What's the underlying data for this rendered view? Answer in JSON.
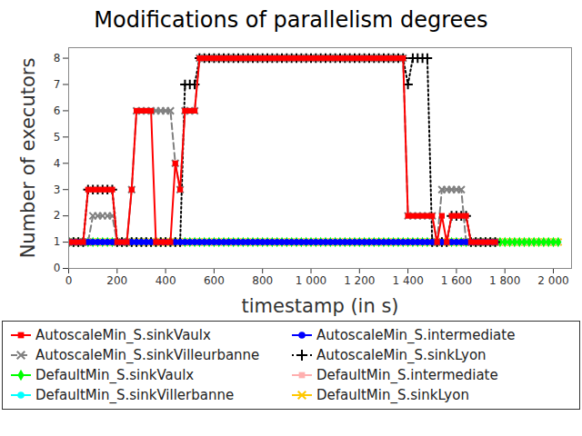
{
  "chart_data": {
    "type": "line",
    "title": "Modifications of parallelism degrees",
    "x_label": "timestamp (in s)",
    "y_label": "Number of executors",
    "xlim": [
      0,
      2075
    ],
    "ylim": [
      0,
      8.4
    ],
    "xticks": [
      0,
      200,
      400,
      600,
      800,
      {
        "value": 1000,
        "label": "1 000"
      },
      {
        "value": 1200,
        "label": "1 200"
      },
      {
        "value": 1400,
        "label": "1 400"
      },
      {
        "value": 1600,
        "label": "1 600"
      },
      {
        "value": 1800,
        "label": "1 800"
      },
      {
        "value": 2000,
        "label": "2 000"
      }
    ],
    "yticks": [
      0,
      1,
      2,
      3,
      4,
      5,
      6,
      7,
      8
    ],
    "grid": false,
    "legend": "bottom",
    "x": [
      0,
      20,
      40,
      60,
      80,
      100,
      120,
      140,
      160,
      180,
      200,
      220,
      240,
      260,
      280,
      300,
      320,
      340,
      360,
      380,
      400,
      420,
      440,
      460,
      480,
      500,
      520,
      540,
      560,
      580,
      600,
      620,
      640,
      660,
      680,
      700,
      720,
      740,
      760,
      780,
      800,
      820,
      840,
      860,
      880,
      900,
      920,
      940,
      960,
      980,
      1000,
      1020,
      1040,
      1060,
      1080,
      1100,
      1120,
      1140,
      1160,
      1180,
      1200,
      1220,
      1240,
      1260,
      1280,
      1300,
      1320,
      1340,
      1360,
      1380,
      1400,
      1420,
      1440,
      1460,
      1480,
      1500,
      1520,
      1540,
      1560,
      1580,
      1600,
      1620,
      1640,
      1660,
      1680,
      1700,
      1720,
      1740,
      1760,
      1780,
      1800,
      1820,
      1840,
      1860,
      1880,
      1900,
      1920,
      1940,
      1960,
      1980,
      2000,
      2020
    ],
    "series": [
      {
        "name": "AutoscaleMin_S.sinkVaulx",
        "color": "#ff0000",
        "marker": "square",
        "line_style": "solid",
        "values": [
          1,
          1,
          1,
          1,
          3,
          3,
          3,
          3,
          3,
          3,
          1,
          1,
          1,
          3,
          6,
          6,
          6,
          6,
          1,
          1,
          1,
          1,
          4,
          3,
          6,
          6,
          6,
          8,
          8,
          8,
          8,
          8,
          8,
          8,
          8,
          8,
          8,
          8,
          8,
          8,
          8,
          8,
          8,
          8,
          8,
          8,
          8,
          8,
          8,
          8,
          8,
          8,
          8,
          8,
          8,
          8,
          8,
          8,
          8,
          8,
          8,
          8,
          8,
          8,
          8,
          8,
          8,
          8,
          8,
          8,
          2,
          2,
          2,
          2,
          2,
          2,
          1,
          2,
          1,
          2,
          2,
          2,
          2,
          1,
          1,
          1,
          1,
          1,
          1,
          null,
          null,
          null,
          null,
          null,
          null,
          null,
          null,
          null,
          null,
          null,
          null,
          null
        ]
      },
      {
        "name": "AutoscaleMin_S.intermediate",
        "color": "#0000ff",
        "marker": "circle",
        "line_style": "solid",
        "values": [
          1,
          1,
          1,
          1,
          1,
          1,
          1,
          1,
          1,
          1,
          1,
          1,
          1,
          1,
          1,
          1,
          1,
          1,
          1,
          1,
          1,
          1,
          1,
          1,
          1,
          1,
          1,
          1,
          1,
          1,
          1,
          1,
          1,
          1,
          1,
          1,
          1,
          1,
          1,
          1,
          1,
          1,
          1,
          1,
          1,
          1,
          1,
          1,
          1,
          1,
          1,
          1,
          1,
          1,
          1,
          1,
          1,
          1,
          1,
          1,
          1,
          1,
          1,
          1,
          1,
          1,
          1,
          1,
          1,
          1,
          1,
          1,
          1,
          1,
          1,
          1,
          1,
          1,
          1,
          1,
          1,
          1,
          1,
          1,
          1,
          1,
          1,
          1,
          1,
          null,
          null,
          null,
          null,
          null,
          null,
          null,
          null,
          null,
          null,
          null,
          null,
          null
        ]
      },
      {
        "name": "AutoscaleMin_S.sinkVilleurbanne",
        "color": "#808080",
        "marker": "times",
        "line_style": "dashed",
        "values": [
          1,
          1,
          1,
          1,
          1,
          2,
          2,
          2,
          2,
          2,
          1,
          1,
          1,
          3,
          6,
          6,
          6,
          6,
          6,
          6,
          6,
          6,
          4,
          3,
          6,
          6,
          6,
          8,
          8,
          8,
          8,
          8,
          8,
          8,
          8,
          8,
          8,
          8,
          8,
          8,
          8,
          8,
          8,
          8,
          8,
          8,
          8,
          8,
          8,
          8,
          8,
          8,
          8,
          8,
          8,
          8,
          8,
          8,
          8,
          8,
          8,
          8,
          8,
          8,
          8,
          8,
          8,
          8,
          8,
          8,
          2,
          2,
          2,
          2,
          2,
          2,
          1,
          3,
          3,
          3,
          3,
          3,
          1,
          1,
          1,
          1,
          1,
          1,
          1,
          null,
          null,
          null,
          null,
          null,
          null,
          null,
          null,
          null,
          null,
          null,
          null,
          null
        ]
      },
      {
        "name": "AutoscaleMin_S.sinkLyon",
        "color": "#000000",
        "marker": "plus",
        "line_style": "dotted",
        "values": [
          1,
          1,
          1,
          1,
          3,
          3,
          3,
          3,
          3,
          3,
          1,
          1,
          1,
          1,
          1,
          1,
          1,
          1,
          1,
          1,
          1,
          1,
          1,
          1,
          7,
          7,
          7,
          8,
          8,
          8,
          8,
          8,
          8,
          8,
          8,
          8,
          8,
          8,
          8,
          8,
          8,
          8,
          8,
          8,
          8,
          8,
          8,
          8,
          8,
          8,
          8,
          8,
          8,
          8,
          8,
          8,
          8,
          8,
          8,
          8,
          8,
          8,
          8,
          8,
          8,
          8,
          8,
          8,
          8,
          8,
          7,
          8,
          8,
          8,
          8,
          1,
          1,
          1,
          1,
          2,
          2,
          2,
          2,
          1,
          1,
          1,
          1,
          1,
          1,
          null,
          null,
          null,
          null,
          null,
          null,
          null,
          null,
          null,
          null,
          null,
          null,
          null
        ]
      },
      {
        "name": "DefaultMin_S.sinkVaulx",
        "color": "#00ff00",
        "marker": "diamond",
        "line_style": "solid",
        "values": [
          1,
          1,
          1,
          1,
          1,
          1,
          1,
          1,
          1,
          1,
          1,
          1,
          1,
          1,
          1,
          1,
          1,
          1,
          1,
          1,
          1,
          1,
          1,
          1,
          1,
          1,
          1,
          1,
          1,
          1,
          1,
          1,
          1,
          1,
          1,
          1,
          1,
          1,
          1,
          1,
          1,
          1,
          1,
          1,
          1,
          1,
          1,
          1,
          1,
          1,
          1,
          1,
          1,
          1,
          1,
          1,
          1,
          1,
          1,
          1,
          1,
          1,
          1,
          1,
          1,
          1,
          1,
          1,
          1,
          1,
          1,
          1,
          1,
          1,
          1,
          1,
          1,
          1,
          1,
          1,
          1,
          1,
          1,
          1,
          1,
          1,
          1,
          1,
          1,
          1,
          1,
          1,
          1,
          1,
          1,
          1,
          1,
          1,
          1,
          1,
          1,
          1
        ]
      },
      {
        "name": "DefaultMin_S.intermediate",
        "color": "#ffafaf",
        "marker": "square",
        "line_style": "solid",
        "values": [
          1,
          1,
          1,
          1,
          1,
          1,
          1,
          1,
          1,
          1,
          1,
          1,
          1,
          1,
          1,
          1,
          1,
          1,
          1,
          1,
          1,
          1,
          1,
          1,
          1,
          1,
          1,
          1,
          1,
          1,
          1,
          1,
          1,
          1,
          1,
          1,
          1,
          1,
          1,
          1,
          1,
          1,
          1,
          1,
          1,
          1,
          1,
          1,
          1,
          1,
          1,
          1,
          1,
          1,
          1,
          1,
          1,
          1,
          1,
          1,
          1,
          1,
          1,
          1,
          1,
          1,
          1,
          1,
          1,
          1,
          1,
          1,
          1,
          1,
          1,
          1,
          1,
          1,
          1,
          1,
          1,
          1,
          1,
          1,
          1,
          1,
          1,
          1,
          1,
          1,
          1,
          1,
          1,
          1,
          1,
          1,
          1,
          1,
          1,
          1,
          1,
          1
        ]
      },
      {
        "name": "DefaultMin_S.sinkVillerbanne",
        "color": "#00ffff",
        "marker": "circle",
        "line_style": "solid",
        "values": [
          1,
          1,
          1,
          1,
          1,
          1,
          1,
          1,
          1,
          1,
          1,
          1,
          1,
          1,
          1,
          1,
          1,
          1,
          1,
          1,
          1,
          1,
          1,
          1,
          1,
          1,
          1,
          1,
          1,
          1,
          1,
          1,
          1,
          1,
          1,
          1,
          1,
          1,
          1,
          1,
          1,
          1,
          1,
          1,
          1,
          1,
          1,
          1,
          1,
          1,
          1,
          1,
          1,
          1,
          1,
          1,
          1,
          1,
          1,
          1,
          1,
          1,
          1,
          1,
          1,
          1,
          1,
          1,
          1,
          1,
          1,
          1,
          1,
          1,
          1,
          1,
          1,
          1,
          1,
          1,
          1,
          1,
          1,
          1,
          1,
          1,
          1,
          1,
          1,
          1,
          1,
          1,
          1,
          1,
          1,
          1,
          1,
          1,
          1,
          1,
          1,
          1
        ]
      },
      {
        "name": "DefaultMin_S.sinkLyon",
        "color": "#ffc800",
        "marker": "times",
        "line_style": "solid",
        "values": [
          1,
          1,
          1,
          1,
          1,
          1,
          1,
          1,
          1,
          1,
          1,
          1,
          1,
          1,
          1,
          1,
          1,
          1,
          1,
          1,
          1,
          1,
          1,
          1,
          1,
          1,
          1,
          1,
          1,
          1,
          1,
          1,
          1,
          1,
          1,
          1,
          1,
          1,
          1,
          1,
          1,
          1,
          1,
          1,
          1,
          1,
          1,
          1,
          1,
          1,
          1,
          1,
          1,
          1,
          1,
          1,
          1,
          1,
          1,
          1,
          1,
          1,
          1,
          1,
          1,
          1,
          1,
          1,
          1,
          1,
          1,
          1,
          1,
          1,
          1,
          1,
          1,
          1,
          1,
          1,
          1,
          1,
          1,
          1,
          1,
          1,
          1,
          1,
          1,
          1,
          1,
          1,
          1,
          1,
          1,
          1,
          1,
          1,
          1,
          1,
          1,
          1
        ]
      }
    ]
  }
}
